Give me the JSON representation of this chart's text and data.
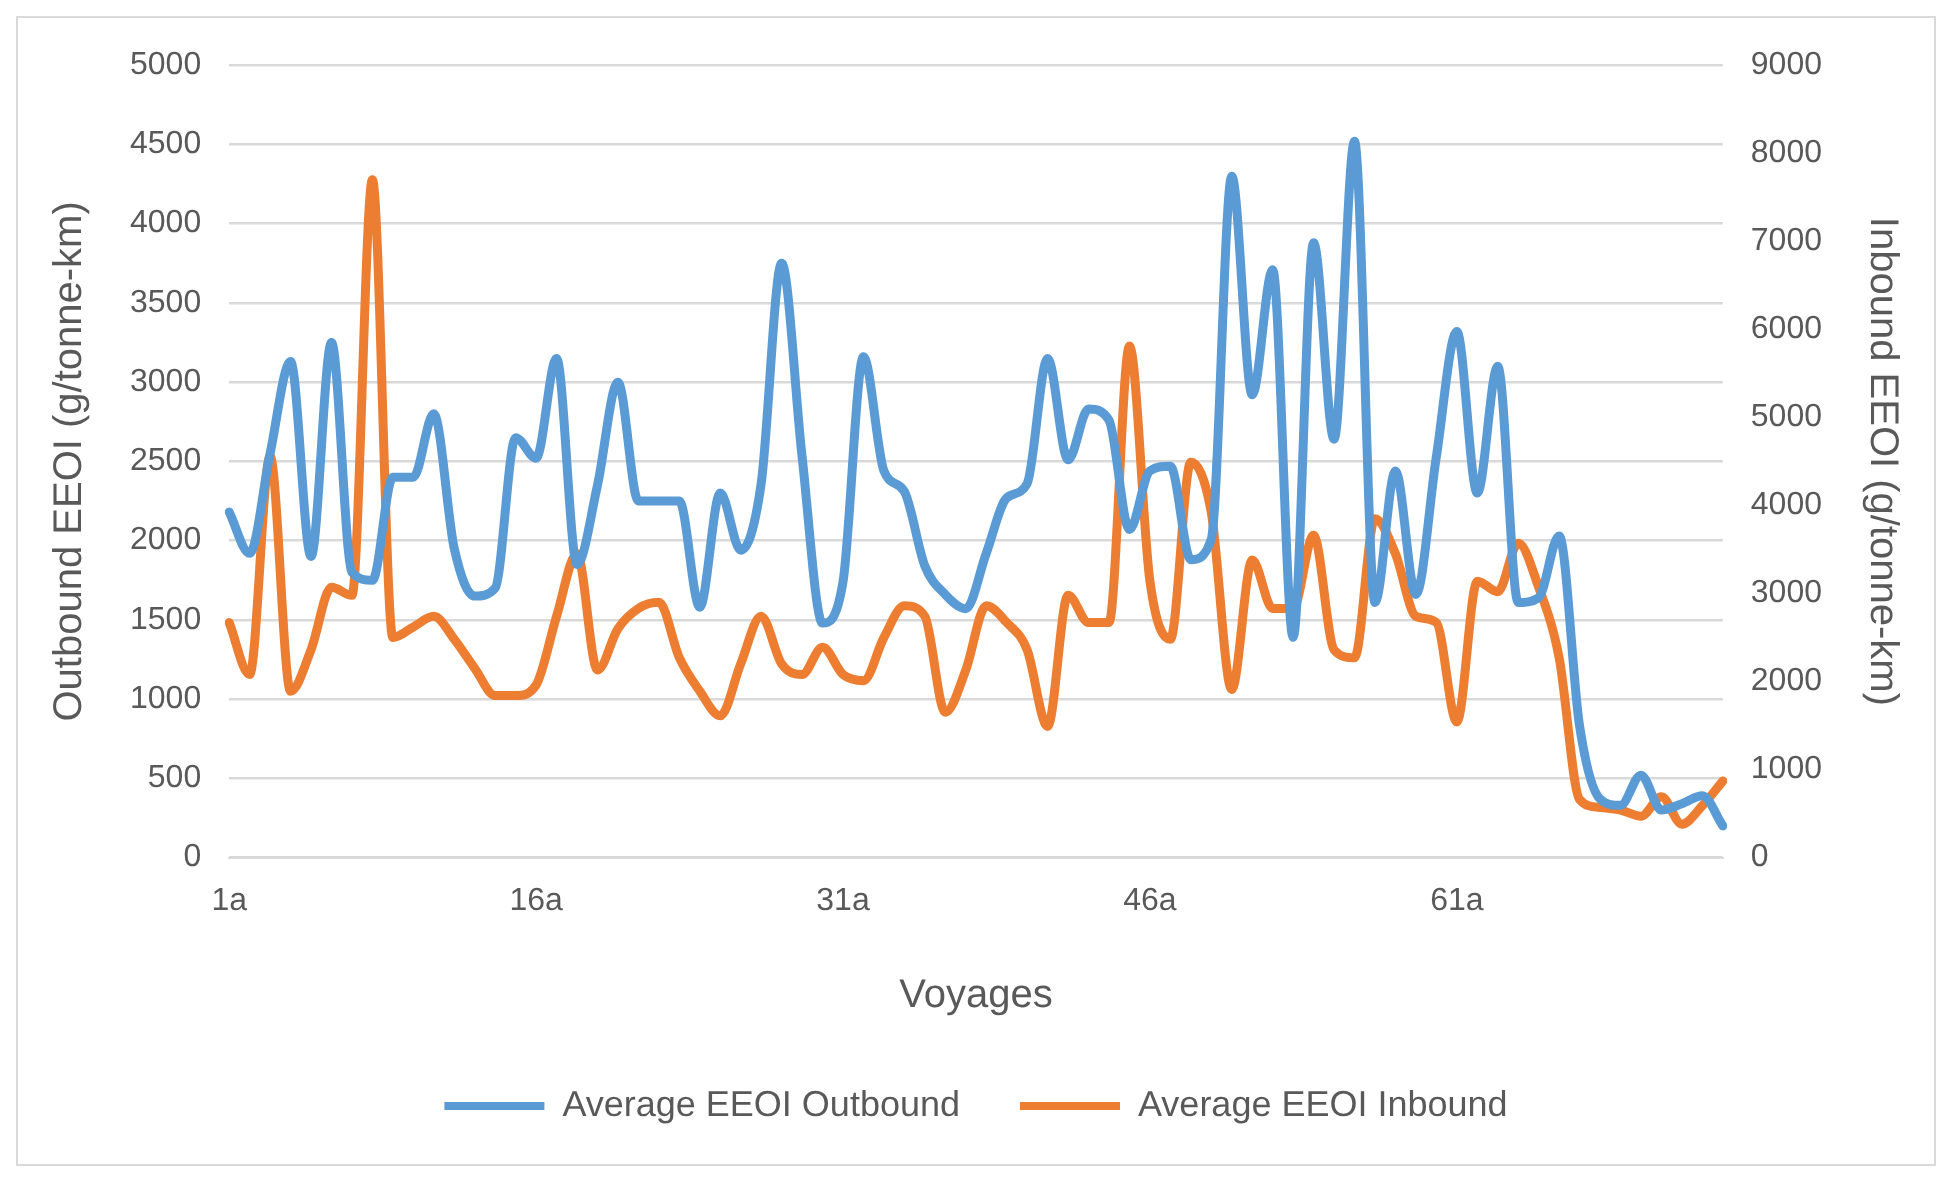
{
  "chart_data": {
    "type": "line",
    "xlabel": "Voyages",
    "ylabel": "Outbound EEOI (g/tonne-km)",
    "y2label": "Inbound EEOI (g/tonne-km)",
    "categories": [
      "1a",
      null,
      null,
      null,
      null,
      null,
      null,
      null,
      null,
      null,
      null,
      null,
      null,
      null,
      null,
      "16a",
      null,
      null,
      null,
      null,
      null,
      null,
      null,
      null,
      null,
      null,
      null,
      null,
      null,
      null,
      "31a",
      null,
      null,
      null,
      null,
      null,
      null,
      null,
      null,
      null,
      null,
      null,
      null,
      null,
      null,
      "46a",
      null,
      null,
      null,
      null,
      null,
      null,
      null,
      null,
      null,
      null,
      null,
      null,
      null,
      null,
      "61a",
      null,
      null,
      null,
      null,
      null,
      null,
      null,
      null,
      null,
      null,
      null,
      null,
      null
    ],
    "series": [
      {
        "name": "Average EEOI Outbound",
        "color": "#5b9bd5",
        "values": [
          2180,
          1920,
          2550,
          3130,
          1900,
          3250,
          1800,
          1750,
          2400,
          2400,
          2800,
          1950,
          1650,
          1700,
          2650,
          2520,
          3150,
          1850,
          2350,
          3000,
          2250,
          2250,
          2250,
          1580,
          2300,
          1940,
          2360,
          3750,
          2530,
          1480,
          1740,
          3160,
          2440,
          2310,
          1840,
          1660,
          1570,
          1920,
          2270,
          2360,
          3150,
          2510,
          2830,
          2760,
          2070,
          2440,
          2470,
          1880,
          2010,
          4300,
          2920,
          3710,
          1390,
          3880,
          2640,
          4520,
          1610,
          2440,
          1660,
          2530,
          3320,
          2300,
          3100,
          1610,
          1640,
          2030,
          830,
          370,
          330,
          520,
          300,
          340,
          390,
          200
        ]
      },
      {
        "name": "Average EEOI Inbound",
        "color": "#ed7d31",
        "axis": "y2",
        "values": [
          2670,
          2080,
          4560,
          1890,
          2360,
          3070,
          2980,
          7700,
          2500,
          2620,
          2740,
          2480,
          2150,
          1840,
          1840,
          1960,
          2740,
          3450,
          2130,
          2600,
          2830,
          2900,
          2270,
          1890,
          1610,
          2200,
          2740,
          2200,
          2080,
          2390,
          2080,
          2010,
          2500,
          2860,
          2740,
          1650,
          2130,
          2860,
          2670,
          2360,
          1490,
          2980,
          2670,
          2670,
          5810,
          3140,
          2480,
          4490,
          3920,
          1910,
          3380,
          2830,
          2830,
          3660,
          2360,
          2270,
          3850,
          3450,
          2740,
          2670,
          1540,
          3140,
          3020,
          3570,
          3070,
          2270,
          660,
          570,
          540,
          470,
          690,
          380,
          590,
          870
        ]
      }
    ],
    "ylim": [
      0,
      5000
    ],
    "yticks": [
      0,
      500,
      1000,
      1500,
      2000,
      2500,
      3000,
      3500,
      4000,
      4500,
      5000
    ],
    "y2lim": [
      0,
      9000
    ],
    "y2ticks": [
      0,
      1000,
      2000,
      3000,
      4000,
      5000,
      6000,
      7000,
      8000,
      9000
    ],
    "grid": "y",
    "legend": "bottom",
    "marker": "none",
    "line_style": "solid"
  }
}
